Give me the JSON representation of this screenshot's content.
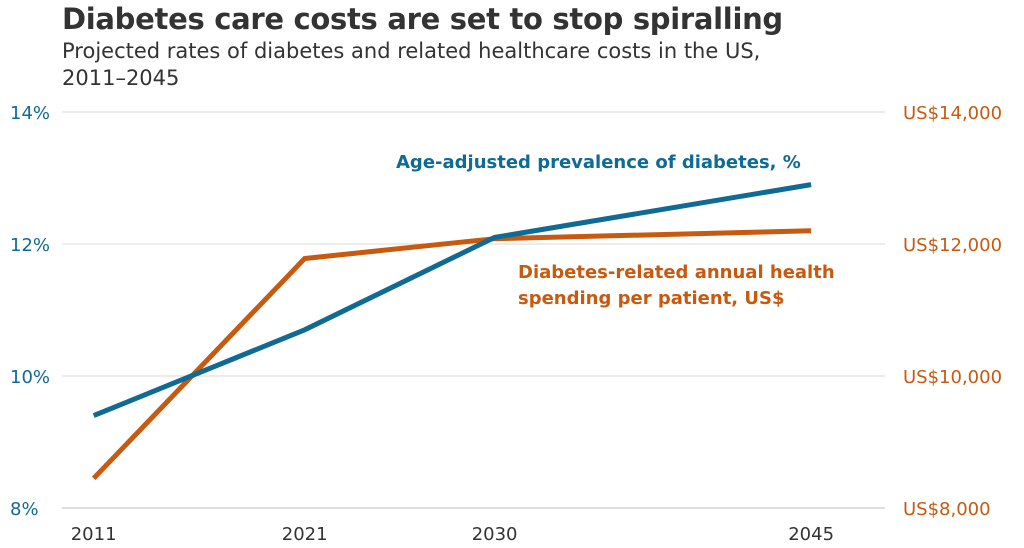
{
  "chart_data": {
    "type": "line",
    "title": "Diabetes care costs are set to stop spiralling",
    "subtitle": "Projected rates of diabetes and related healthcare costs in the US, 2011–2045",
    "x": [
      2011,
      2021,
      2030,
      2045
    ],
    "x_tick_labels": [
      "2011",
      "2021",
      "2030",
      "2045"
    ],
    "y_left": {
      "ylim": [
        8,
        14
      ],
      "ticks": [
        8,
        10,
        12,
        14
      ],
      "tick_labels": [
        "8%",
        "10%",
        "12%",
        "14%"
      ]
    },
    "y_right": {
      "ylim": [
        8000,
        14000
      ],
      "ticks": [
        8000,
        10000,
        12000,
        14000
      ],
      "tick_labels": [
        "US$8,000",
        "US$10,000",
        "US$12,000",
        "US$14,000"
      ]
    },
    "series": [
      {
        "name": "Age-adjusted prevalence of diabetes, %",
        "axis": "left",
        "color": "#0f6a94",
        "values": [
          9.4,
          10.7,
          12.1,
          12.9
        ]
      },
      {
        "name": "Diabetes-related annual health spending per patient, US$",
        "axis": "right",
        "color": "#c85a10",
        "label_lines": [
          "Diabetes-related annual health",
          "spending per patient, US$"
        ],
        "values": [
          8450,
          11780,
          12080,
          12200
        ]
      }
    ],
    "grid": true,
    "legend": "inline labels"
  }
}
